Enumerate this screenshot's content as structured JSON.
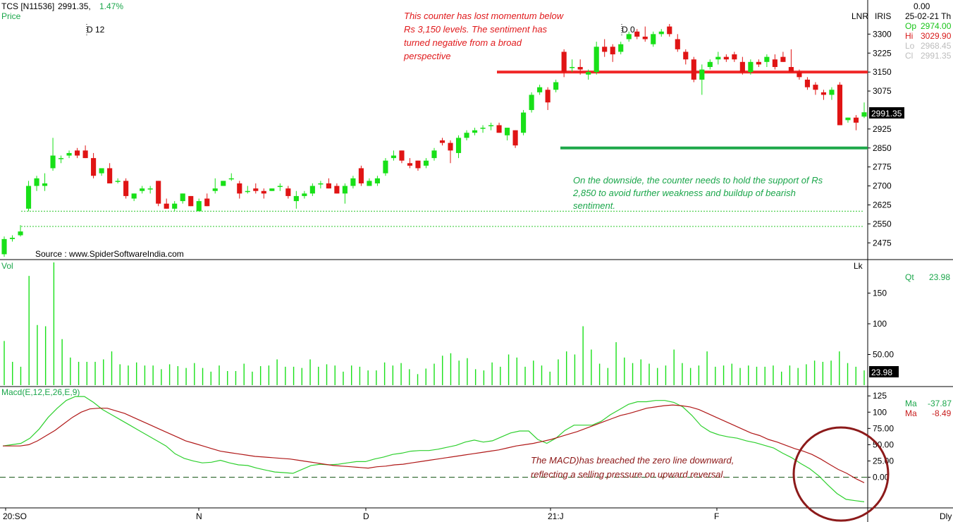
{
  "header": {
    "symbol": "TCS [N11536]",
    "last": "2991.35,",
    "change_pct": "1.47%",
    "price_label": "Price",
    "lnr": "LNR",
    "iris": "IRIS",
    "top_value": "0.00",
    "date": "25-02-21 Th"
  },
  "ohlc": [
    {
      "label": "Op",
      "value": "2974.00",
      "color": "#18c418"
    },
    {
      "label": "Hi",
      "value": "3029.90",
      "color": "#d81b1b"
    },
    {
      "label": "Lo",
      "value": "2968.45",
      "color": "#bdbdbd"
    },
    {
      "label": "Cl",
      "value": "2991.35",
      "color": "#bdbdbd"
    }
  ],
  "markers": {
    "d12": "D 12",
    "d0": "D 0"
  },
  "source": "Source : www.SpiderSoftwareIndia.com",
  "last_price_box": "2991.35",
  "annotations": {
    "red": [
      "This counter has lost momentum below",
      "Rs 3,150 levels. The sentiment has",
      "turned negative from a broad",
      "perspective"
    ],
    "green": [
      "On the downside, the counter needs to hold the support of Rs",
      "2,850 to avoid further weakness and buildup of bearish",
      "sentiment."
    ],
    "macd": [
      "The MACD)has breached the zero line downward,",
      "reflecting a selling pressure on upward reversal."
    ]
  },
  "volume_panel": {
    "label": "Vol",
    "lk": "Lk",
    "qt_label": "Qt",
    "qt_value": "23.98",
    "last_box": "23.98"
  },
  "macd_panel": {
    "label": "Macd(E,12,E,26,E,9)",
    "ma1_label": "Ma",
    "ma1_value": "-37.87",
    "ma2_label": "Ma",
    "ma2_value": "-8.49"
  },
  "x_axis": {
    "labels": [
      "20:SO",
      "N",
      "D",
      "21:J",
      "F"
    ],
    "dly": "Dly"
  },
  "colors": {
    "up": "#18e018",
    "down": "#e01414",
    "resistance": "#f02828",
    "support": "#1ea84a",
    "macd": "#2ed02e",
    "signal": "#b01818",
    "circle": "#8c1a1a"
  },
  "chart_data": [
    {
      "type": "candlestick",
      "title": "TCS [N11536]",
      "ylim": [
        2420,
        3340
      ],
      "y_ticks": [
        2475,
        2550,
        2625,
        2700,
        2775,
        2850,
        2925,
        3075,
        3150,
        3225,
        3300
      ],
      "resistance": 3150,
      "support": 2850,
      "dotted_levels": [
        2600,
        2540
      ],
      "ohlc": [
        [
          2430,
          2500,
          2420,
          2490
        ],
        [
          2490,
          2505,
          2480,
          2495
        ],
        [
          2505,
          2545,
          2500,
          2520
        ],
        [
          2610,
          2720,
          2600,
          2700
        ],
        [
          2700,
          2740,
          2680,
          2730
        ],
        [
          2700,
          2750,
          2680,
          2710
        ],
        [
          2770,
          2890,
          2760,
          2820
        ],
        [
          2810,
          2820,
          2790,
          2810
        ],
        [
          2820,
          2840,
          2810,
          2830
        ],
        [
          2840,
          2850,
          2810,
          2820
        ],
        [
          2840,
          2860,
          2810,
          2810
        ],
        [
          2810,
          2830,
          2730,
          2740
        ],
        [
          2750,
          2770,
          2740,
          2770
        ],
        [
          2770,
          2790,
          2710,
          2710
        ],
        [
          2720,
          2730,
          2710,
          2720
        ],
        [
          2720,
          2730,
          2650,
          2660
        ],
        [
          2650,
          2670,
          2640,
          2670
        ],
        [
          2680,
          2700,
          2670,
          2690
        ],
        [
          2690,
          2700,
          2670,
          2690
        ],
        [
          2720,
          2720,
          2620,
          2630
        ],
        [
          2630,
          2650,
          2610,
          2610
        ],
        [
          2610,
          2640,
          2600,
          2630
        ],
        [
          2640,
          2670,
          2630,
          2670
        ],
        [
          2660,
          2660,
          2620,
          2620
        ],
        [
          2600,
          2650,
          2600,
          2640
        ],
        [
          2650,
          2670,
          2620,
          2620
        ],
        [
          2680,
          2730,
          2670,
          2690
        ],
        [
          2700,
          2720,
          2700,
          2720
        ],
        [
          2730,
          2750,
          2720,
          2730
        ],
        [
          2710,
          2720,
          2650,
          2670
        ],
        [
          2680,
          2700,
          2670,
          2680
        ],
        [
          2690,
          2710,
          2670,
          2680
        ],
        [
          2680,
          2690,
          2650,
          2670
        ],
        [
          2680,
          2690,
          2680,
          2690
        ],
        [
          2700,
          2710,
          2680,
          2700
        ],
        [
          2690,
          2700,
          2650,
          2660
        ],
        [
          2640,
          2680,
          2610,
          2660
        ],
        [
          2660,
          2680,
          2650,
          2670
        ],
        [
          2670,
          2710,
          2660,
          2700
        ],
        [
          2710,
          2720,
          2690,
          2710
        ],
        [
          2710,
          2730,
          2690,
          2690
        ],
        [
          2700,
          2710,
          2670,
          2670
        ],
        [
          2670,
          2710,
          2630,
          2700
        ],
        [
          2700,
          2740,
          2690,
          2730
        ],
        [
          2770,
          2780,
          2700,
          2710
        ],
        [
          2700,
          2730,
          2700,
          2720
        ],
        [
          2710,
          2740,
          2700,
          2730
        ],
        [
          2750,
          2810,
          2740,
          2800
        ],
        [
          2810,
          2840,
          2800,
          2820
        ],
        [
          2840,
          2840,
          2790,
          2800
        ],
        [
          2790,
          2810,
          2770,
          2780
        ],
        [
          2800,
          2800,
          2760,
          2770
        ],
        [
          2780,
          2810,
          2770,
          2800
        ],
        [
          2810,
          2850,
          2800,
          2840
        ],
        [
          2880,
          2890,
          2860,
          2870
        ],
        [
          2870,
          2880,
          2790,
          2840
        ],
        [
          2830,
          2900,
          2810,
          2890
        ],
        [
          2890,
          2920,
          2880,
          2910
        ],
        [
          2910,
          2930,
          2900,
          2920
        ],
        [
          2930,
          2940,
          2910,
          2930
        ],
        [
          2940,
          2950,
          2920,
          2940
        ],
        [
          2940,
          2950,
          2910,
          2910
        ],
        [
          2900,
          2930,
          2880,
          2930
        ],
        [
          2920,
          2920,
          2850,
          2860
        ],
        [
          2910,
          3000,
          2900,
          2990
        ],
        [
          3000,
          3070,
          2990,
          3060
        ],
        [
          3070,
          3100,
          3060,
          3090
        ],
        [
          3080,
          3090,
          3000,
          3030
        ],
        [
          3080,
          3120,
          3070,
          3110
        ],
        [
          3230,
          3240,
          3130,
          3150
        ],
        [
          3170,
          3200,
          3150,
          3170
        ],
        [
          3170,
          3200,
          3140,
          3160
        ],
        [
          3140,
          3160,
          3120,
          3150
        ],
        [
          3150,
          3270,
          3140,
          3250
        ],
        [
          3250,
          3280,
          3210,
          3230
        ],
        [
          3250,
          3260,
          3190,
          3220
        ],
        [
          3230,
          3270,
          3220,
          3260
        ],
        [
          3280,
          3310,
          3270,
          3300
        ],
        [
          3310,
          3320,
          3280,
          3290
        ],
        [
          3290,
          3330,
          3270,
          3280
        ],
        [
          3260,
          3310,
          3250,
          3300
        ],
        [
          3300,
          3320,
          3290,
          3310
        ],
        [
          3330,
          3340,
          3290,
          3300
        ],
        [
          3280,
          3300,
          3230,
          3240
        ],
        [
          3230,
          3240,
          3180,
          3200
        ],
        [
          3200,
          3210,
          3110,
          3120
        ],
        [
          3120,
          3180,
          3060,
          3160
        ],
        [
          3170,
          3200,
          3160,
          3190
        ],
        [
          3200,
          3230,
          3180,
          3210
        ],
        [
          3210,
          3220,
          3190,
          3200
        ],
        [
          3220,
          3230,
          3190,
          3200
        ],
        [
          3190,
          3210,
          3140,
          3150
        ],
        [
          3150,
          3200,
          3140,
          3190
        ],
        [
          3190,
          3200,
          3170,
          3180
        ],
        [
          3190,
          3220,
          3170,
          3210
        ],
        [
          3200,
          3220,
          3160,
          3170
        ],
        [
          3210,
          3230,
          3190,
          3190
        ],
        [
          3170,
          3240,
          3150,
          3150
        ],
        [
          3150,
          3160,
          3120,
          3130
        ],
        [
          3120,
          3130,
          3080,
          3090
        ],
        [
          3100,
          3110,
          3060,
          3080
        ],
        [
          3070,
          3080,
          3040,
          3060
        ],
        [
          3060,
          3090,
          3040,
          3080
        ],
        [
          3100,
          3110,
          2940,
          2940
        ],
        [
          2960,
          2970,
          2950,
          2970
        ],
        [
          2970,
          2980,
          2920,
          2950
        ],
        [
          2974,
          3030,
          2968,
          2991
        ]
      ]
    },
    {
      "type": "bar",
      "title": "Vol",
      "y_ticks": [
        50,
        100,
        150
      ],
      "ylim": [
        0,
        200
      ],
      "values": [
        72,
        38,
        30,
        178,
        98,
        96,
        200,
        75,
        45,
        38,
        38,
        38,
        42,
        55,
        34,
        32,
        37,
        32,
        32,
        26,
        34,
        31,
        28,
        36,
        28,
        22,
        32,
        23,
        23,
        35,
        22,
        31,
        32,
        42,
        30,
        30,
        28,
        42,
        30,
        34,
        32,
        22,
        32,
        30,
        24,
        24,
        37,
        32,
        36,
        26,
        18,
        27,
        35,
        48,
        52,
        40,
        44,
        26,
        24,
        37,
        30,
        50,
        45,
        30,
        40,
        32,
        22,
        42,
        55,
        50,
        96,
        58,
        35,
        28,
        70,
        45,
        36,
        42,
        35,
        28,
        32,
        58,
        36,
        28,
        32,
        55,
        30,
        32,
        35,
        28,
        32,
        30,
        30,
        32,
        22,
        32,
        28,
        34,
        40,
        38,
        40,
        55,
        36,
        30,
        24
      ]
    },
    {
      "type": "line",
      "title": "Macd(E,12,E,26,E,9)",
      "ylim": [
        -45,
        135
      ],
      "y_ticks": [
        0,
        25,
        50,
        75,
        100,
        125
      ],
      "series": [
        {
          "name": "Ma",
          "values": [
            48,
            50,
            52,
            60,
            74,
            92,
            106,
            118,
            124,
            124,
            115,
            104,
            96,
            88,
            80,
            72,
            64,
            56,
            48,
            36,
            29,
            25,
            22,
            23,
            26,
            22,
            19,
            18,
            14,
            11,
            8,
            7,
            6,
            12,
            18,
            20,
            19,
            20,
            22,
            24,
            24,
            28,
            31,
            35,
            37,
            40,
            41,
            41,
            43,
            46,
            49,
            54,
            57,
            54,
            56,
            62,
            68,
            71,
            71,
            58,
            52,
            60,
            72,
            80,
            80,
            80,
            86,
            96,
            104,
            112,
            116,
            116,
            118,
            118,
            115,
            108,
            95,
            79,
            70,
            65,
            62,
            60,
            56,
            53,
            49,
            45,
            37,
            30,
            21,
            13,
            2,
            -12,
            -25,
            -34,
            -36,
            -37.87
          ]
        },
        {
          "name": "Ma",
          "values": [
            48,
            48,
            48,
            50,
            56,
            64,
            72,
            82,
            92,
            100,
            105,
            106,
            106,
            102,
            98,
            92,
            86,
            80,
            74,
            68,
            62,
            56,
            52,
            48,
            44,
            40,
            38,
            36,
            34,
            32,
            31,
            30,
            29,
            28,
            26,
            24,
            22,
            20,
            18,
            17,
            16,
            15,
            14,
            16,
            17,
            19,
            20,
            22,
            24,
            26,
            28,
            30,
            32,
            34,
            36,
            38,
            40,
            42,
            45,
            48,
            50,
            52,
            55,
            58,
            62,
            66,
            70,
            75,
            80,
            85,
            90,
            95,
            98,
            102,
            106,
            108,
            110,
            111,
            110,
            108,
            104,
            98,
            92,
            86,
            80,
            74,
            68,
            64,
            58,
            54,
            49,
            44,
            40,
            35,
            28,
            20,
            12,
            6,
            -2,
            -8.49
          ]
        }
      ]
    }
  ]
}
